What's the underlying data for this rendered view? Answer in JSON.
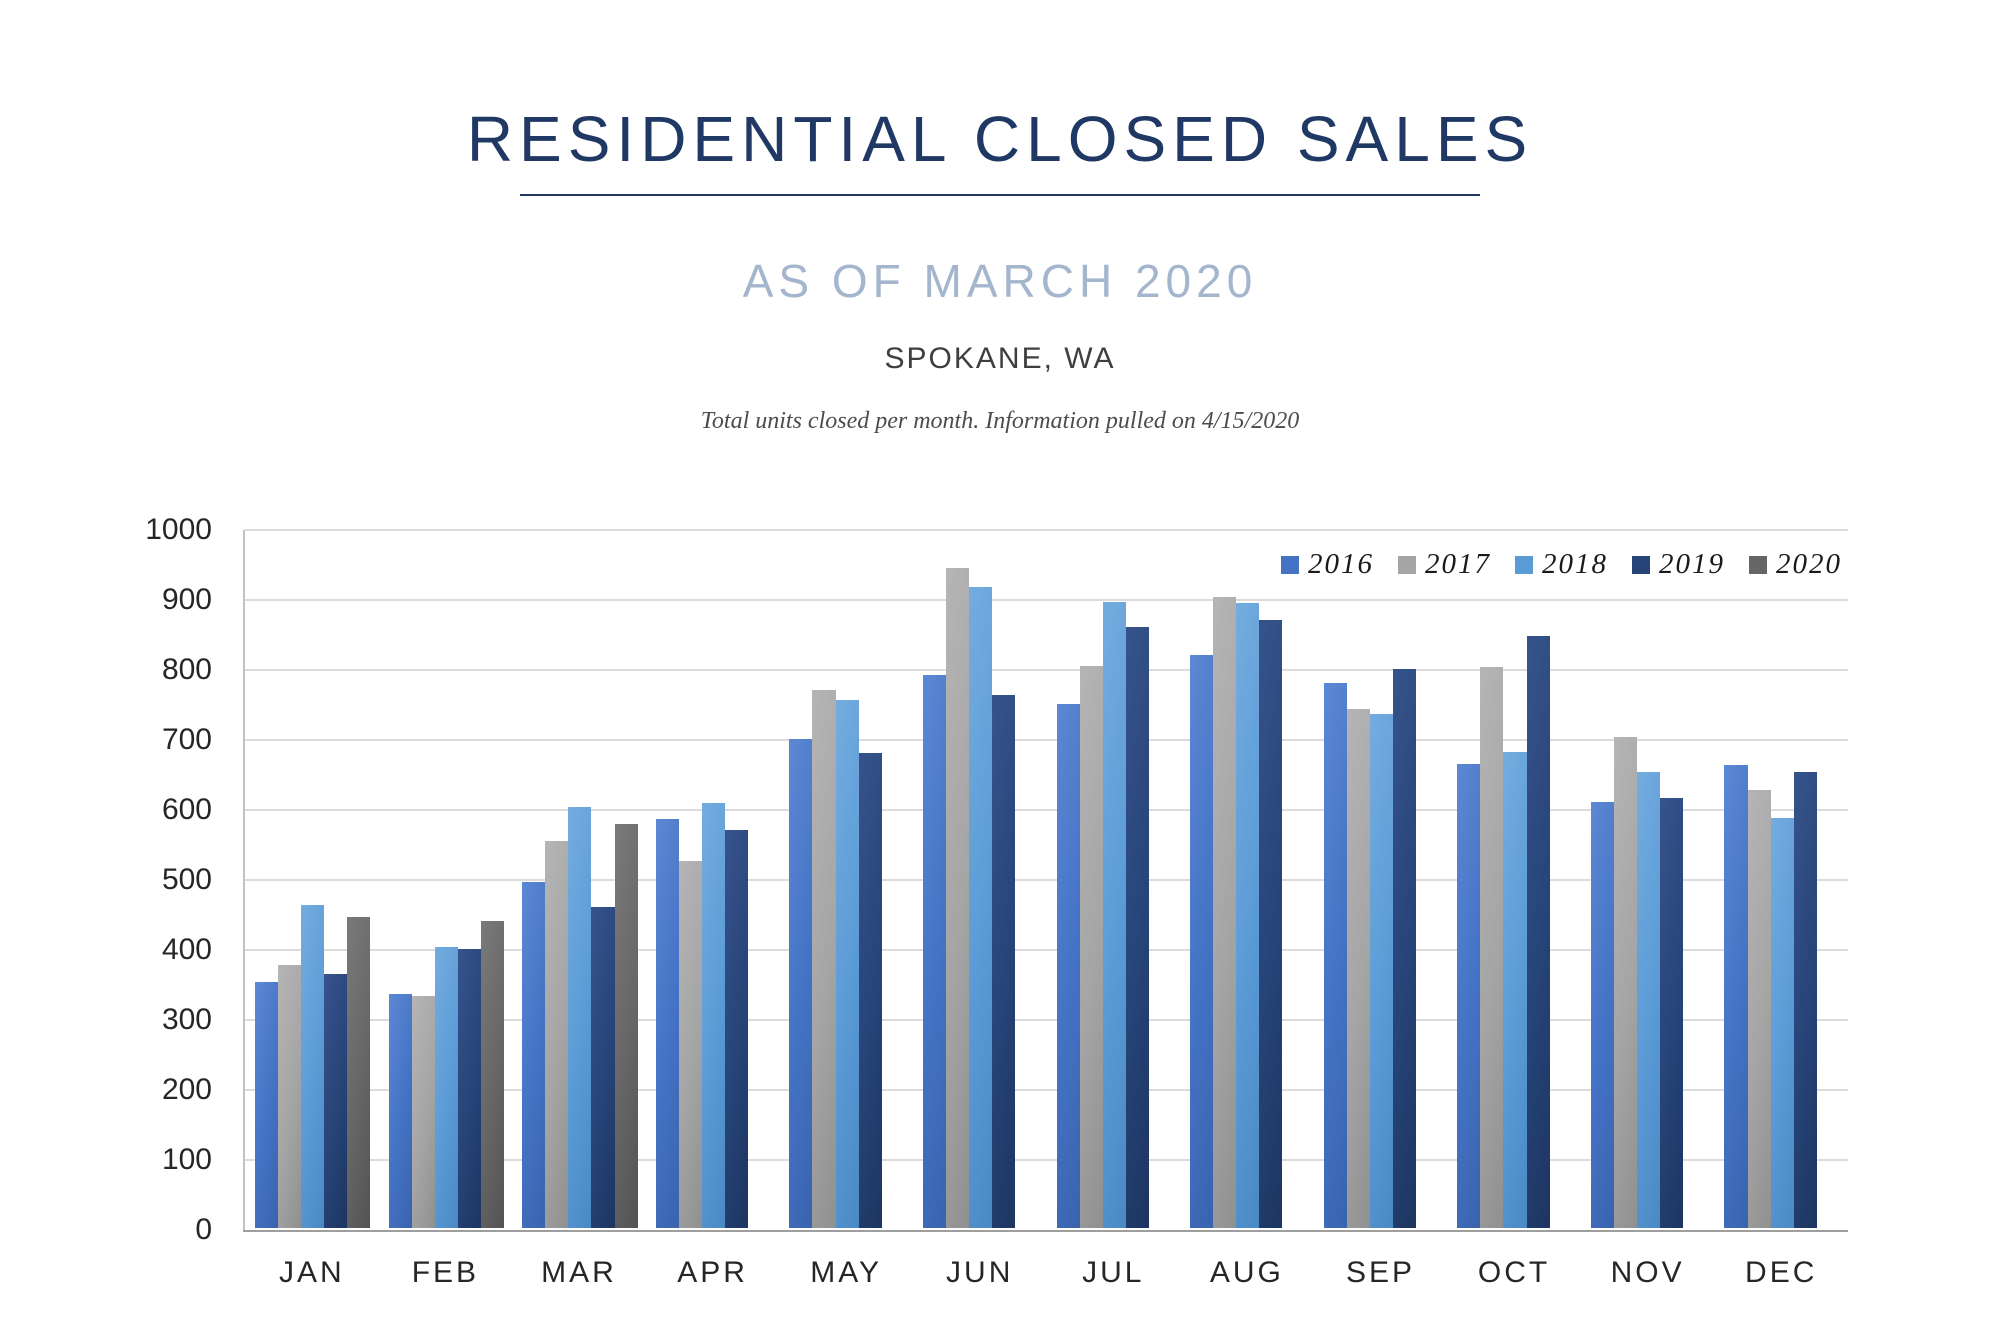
{
  "header": {
    "title": "RESIDENTIAL CLOSED SALES",
    "subtitle": "AS OF MARCH 2020",
    "location": "SPOKANE, WA",
    "note": "Total units closed per month.  Information pulled on 4/15/2020"
  },
  "colors": {
    "title_navy": "#1F3864",
    "subtitle_blue_gray": "#A4B5CE",
    "axis_text": "#262626",
    "gridline": "#DCDCDC"
  },
  "chart_data": {
    "type": "bar",
    "title": "Residential Closed Sales by month, Spokane WA",
    "categories": [
      "JAN",
      "FEB",
      "MAR",
      "APR",
      "MAY",
      "JUN",
      "JUL",
      "AUG",
      "SEP",
      "OCT",
      "NOV",
      "DEC"
    ],
    "series": [
      {
        "name": "2016",
        "color": "#4472C4",
        "color_light": "#5C88D4",
        "color_dark": "#3A63AE",
        "values": [
          351,
          335,
          494,
          585,
          698,
          790,
          748,
          819,
          779,
          663,
          608,
          662
        ]
      },
      {
        "name": "2017",
        "color": "#A5A5A5",
        "color_light": "#B5B5B5",
        "color_dark": "#909090",
        "values": [
          376,
          332,
          553,
          524,
          768,
          943,
          803,
          901,
          741,
          801,
          702,
          626
        ]
      },
      {
        "name": "2018",
        "color": "#5B9BD5",
        "color_light": "#74ACDF",
        "color_dark": "#4A89C4",
        "values": [
          462,
          401,
          601,
          607,
          754,
          916,
          894,
          893,
          735,
          680,
          652,
          586
        ]
      },
      {
        "name": "2019",
        "color": "#264478",
        "color_light": "#37538C",
        "color_dark": "#1D3560",
        "values": [
          363,
          399,
          459,
          568,
          678,
          761,
          858,
          868,
          798,
          846,
          614,
          652
        ]
      },
      {
        "name": "2020",
        "color": "#666666",
        "color_light": "#7A7A7A",
        "color_dark": "#535353",
        "values": [
          444,
          439,
          577,
          null,
          null,
          null,
          null,
          null,
          null,
          null,
          null,
          null
        ]
      }
    ],
    "ylabel": "",
    "xlabel": "",
    "ylim": [
      0,
      1000
    ],
    "ytick_step": 100,
    "yticks": [
      0,
      100,
      200,
      300,
      400,
      500,
      600,
      700,
      800,
      900,
      1000
    ],
    "grid": true,
    "legend_position": "top-right",
    "legend_entries": [
      "2016",
      "2017",
      "2018",
      "2019",
      "2020"
    ]
  }
}
